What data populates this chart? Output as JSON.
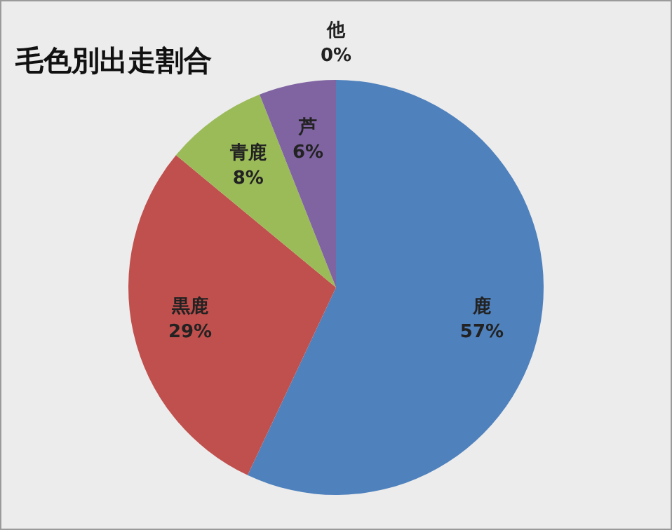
{
  "chart_data": {
    "type": "pie",
    "title": "毛色別出走割合",
    "categories": [
      "鹿",
      "黒鹿",
      "青鹿",
      "芦",
      "他"
    ],
    "values": [
      57,
      29,
      8,
      6,
      0
    ],
    "value_labels": [
      "57%",
      "29%",
      "8%",
      "6%",
      "0%"
    ],
    "colors": [
      "#4f81bd",
      "#c0504d",
      "#9bbb59",
      "#8064a2",
      "#f79646"
    ],
    "legend": false
  }
}
